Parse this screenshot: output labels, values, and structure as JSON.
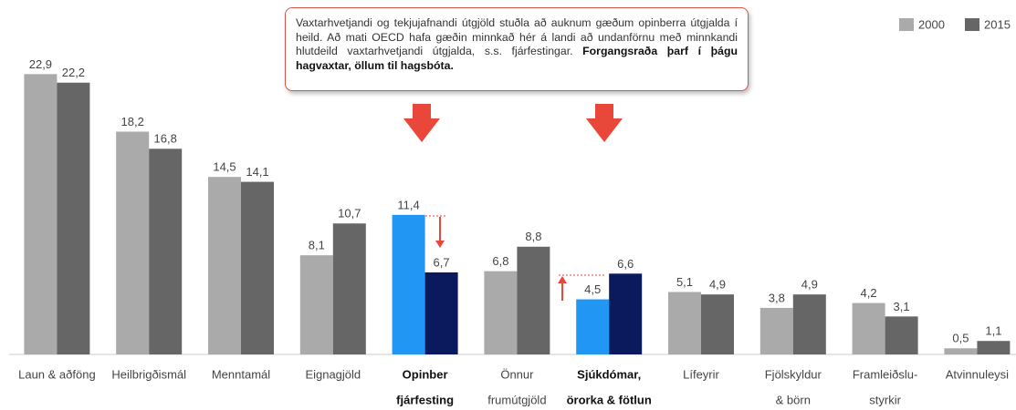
{
  "chart_data": {
    "type": "bar",
    "categories": [
      [
        "Laun & aðföng"
      ],
      [
        "Heilbrigðismál"
      ],
      [
        "Menntamál"
      ],
      [
        "Eignagjöld"
      ],
      [
        "Opinber",
        "fjárfesting"
      ],
      [
        "Önnur",
        "frumútgjöld"
      ],
      [
        "Sjúkdómar,",
        "örorka & fötlun"
      ],
      [
        "Lífeyrir"
      ],
      [
        "Fjölskyldur",
        "& börn"
      ],
      [
        "Framleiðslu-",
        "styrkir"
      ],
      [
        "Atvinnuleysi"
      ]
    ],
    "series": [
      {
        "name": "2000",
        "color": "#aaaaaa",
        "colors": [
          "#aaaaaa",
          "#aaaaaa",
          "#aaaaaa",
          "#aaaaaa",
          "#2196f3",
          "#aaaaaa",
          "#2196f3",
          "#aaaaaa",
          "#aaaaaa",
          "#aaaaaa",
          "#aaaaaa"
        ],
        "values": [
          22.9,
          18.2,
          14.5,
          8.1,
          11.4,
          6.8,
          4.5,
          5.1,
          3.8,
          4.2,
          0.5
        ],
        "value_labels": [
          "22,9",
          "18,2",
          "14,5",
          "8,1",
          "11,4",
          "6,8",
          "4,5",
          "5,1",
          "3,8",
          "4,2",
          "0,5"
        ]
      },
      {
        "name": "2015",
        "color": "#666666",
        "colors": [
          "#666666",
          "#666666",
          "#666666",
          "#666666",
          "#0a1a5c",
          "#666666",
          "#0a1a5c",
          "#666666",
          "#666666",
          "#666666",
          "#666666"
        ],
        "values": [
          22.2,
          16.8,
          14.1,
          10.7,
          6.7,
          8.8,
          6.6,
          4.9,
          4.9,
          3.1,
          1.1
        ],
        "value_labels": [
          "22,2",
          "16,8",
          "14,1",
          "10,7",
          "6,7",
          "8,8",
          "6,6",
          "4,9",
          "4,9",
          "3,1",
          "1,1"
        ]
      }
    ],
    "ylim": [
      0,
      23
    ],
    "legend": "top-right",
    "annotation": {
      "text": "Vaxtarhvetjandi og tekjujafnandi útgjöld stuðla að auknum gæðum opinberra útgjalda í heild. Að mati OECD hafa gæðin minnkað hér á landi að undanförnu með minnkandi hlutdeild vaxtarhvetjandi útgjalda, s.s. fjárfestingar.",
      "bold": "Forgangsraða þarf í þágu hagvaxtar, öllum til hagsbóta."
    }
  }
}
